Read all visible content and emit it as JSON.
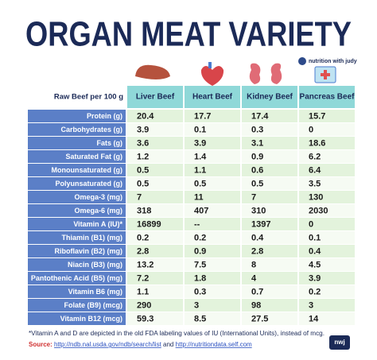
{
  "header": {
    "title": "ORGAN MEAT VARIETY",
    "logo": "nutrition with judy"
  },
  "table": {
    "header_label": "Raw Beef per 100 g",
    "columns": [
      "Liver Beef",
      "Heart Beef",
      "Kidney Beef",
      "Pancreas Beef"
    ],
    "rows": [
      {
        "label": "Protein (g)",
        "values": [
          20.4,
          17.7,
          17.4,
          15.7
        ]
      },
      {
        "label": "Carbohydrates (g)",
        "values": [
          3.9,
          0.1,
          0.3,
          0
        ]
      },
      {
        "label": "Fats (g)",
        "values": [
          3.6,
          3.9,
          3.1,
          18.6
        ]
      },
      {
        "label": "Saturated Fat (g)",
        "values": [
          1.2,
          1.4,
          0.9,
          6.2
        ]
      },
      {
        "label": "Monounsaturated (g)",
        "values": [
          0.5,
          1.1,
          0.6,
          6.4
        ]
      },
      {
        "label": "Polyunsaturated (g)",
        "values": [
          0.5,
          0.5,
          0.5,
          3.5
        ]
      },
      {
        "label": "Omega-3 (mg)",
        "values": [
          7,
          11,
          7,
          130
        ]
      },
      {
        "label": "Omega-6 (mg)",
        "values": [
          318,
          407,
          310,
          2030
        ]
      },
      {
        "label": "Vitamin A (IU)*",
        "values": [
          16899,
          "--",
          1397,
          0
        ]
      },
      {
        "label": "Thiamin (B1) (mg)",
        "values": [
          0.2,
          0.2,
          0.4,
          0.1
        ]
      },
      {
        "label": "Riboflavin (B2) (mg)",
        "values": [
          2.8,
          0.9,
          2.8,
          0.4
        ]
      },
      {
        "label": "Niacin (B3) (mg)",
        "values": [
          13.2,
          7.5,
          8,
          4.5
        ]
      },
      {
        "label": "Pantothenic Acid (B5) (mg)",
        "values": [
          7.2,
          1.8,
          4,
          3.9
        ]
      },
      {
        "label": "Vitamin B6 (mg)",
        "values": [
          1.1,
          0.3,
          0.7,
          0.2
        ]
      },
      {
        "label": "Folate (B9) (mcg)",
        "values": [
          290,
          3,
          98,
          3
        ]
      },
      {
        "label": "Vitamin B12 (mcg)",
        "values": [
          59.3,
          8.5,
          27.5,
          14
        ]
      }
    ]
  },
  "footer": {
    "note": "*Vitamin A and D are depicted in the old FDA labeling values of IU (International Units), instead of mcg.",
    "source_label": "Source:",
    "source_link_1": "http://ndb.nal.usda.gov/ndb/search/list",
    "source_and": "and",
    "source_link_2": "http://nutritiondata.self.com",
    "badge": "nwj"
  }
}
